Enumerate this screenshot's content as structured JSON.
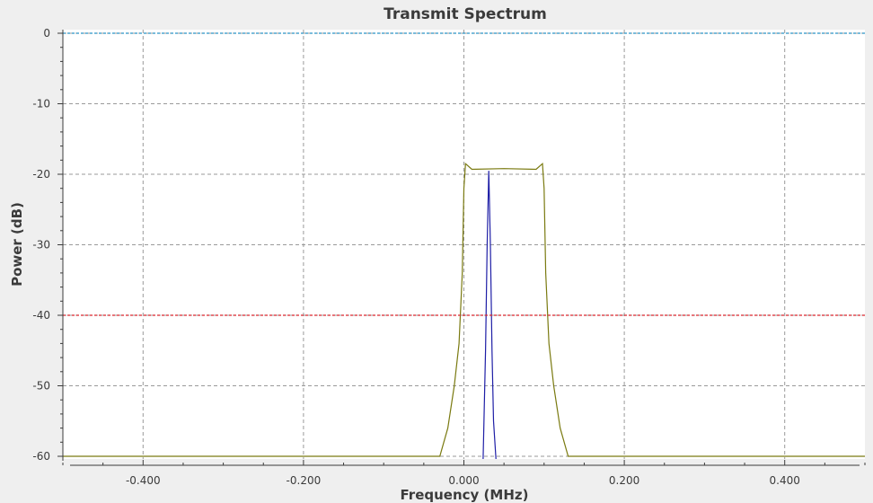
{
  "chart_data": {
    "type": "line",
    "title": "Transmit Spectrum",
    "xlabel": "Frequency (MHz)",
    "ylabel": "Power (dB)",
    "xlim": [
      -0.5,
      0.5
    ],
    "ylim": [
      -60,
      0
    ],
    "x_ticks": [
      -0.4,
      -0.2,
      0.0,
      0.2,
      0.4
    ],
    "x_tick_labels": [
      "-0.400",
      "-0.200",
      "0.000",
      "0.200",
      "0.400"
    ],
    "y_ticks": [
      0,
      -10,
      -20,
      -30,
      -40,
      -50,
      -60
    ],
    "y_tick_labels": [
      "0",
      "-10",
      "-20",
      "-30",
      "-40",
      "-50",
      "-60"
    ],
    "grid": true,
    "colors": {
      "background": "#efefef",
      "plot_area": "#ffffff",
      "grid": "#9a9a9a",
      "axis": "#3b3b3b"
    },
    "series": [
      {
        "color": "#7a7a10",
        "x": [
          -0.5,
          -0.03,
          -0.02,
          -0.012,
          -0.006,
          -0.002,
          0.0,
          0.002,
          0.01,
          0.05,
          0.09,
          0.098,
          0.1,
          0.102,
          0.106,
          0.112,
          0.12,
          0.13,
          0.5
        ],
        "y": [
          -60,
          -60,
          -56,
          -50,
          -44,
          -34,
          -22,
          -18.5,
          -19.3,
          -19.2,
          -19.3,
          -18.5,
          -22,
          -34,
          -44,
          -50,
          -56,
          -60,
          -60
        ]
      },
      {
        "color": "#1e1ea6",
        "x": [
          0.024,
          0.027,
          0.029,
          0.031,
          0.033,
          0.035,
          0.037,
          0.04
        ],
        "y": [
          -61,
          -45,
          -30,
          -19.5,
          -30,
          -45,
          -55,
          -61
        ]
      },
      {
        "color": "#2b95c6",
        "dashed": true,
        "x": [
          -0.5,
          0.5
        ],
        "y": [
          0,
          0
        ]
      },
      {
        "color": "#d9262e",
        "dashed": true,
        "x": [
          -0.5,
          0.5
        ],
        "y": [
          -40,
          -40
        ]
      }
    ]
  }
}
